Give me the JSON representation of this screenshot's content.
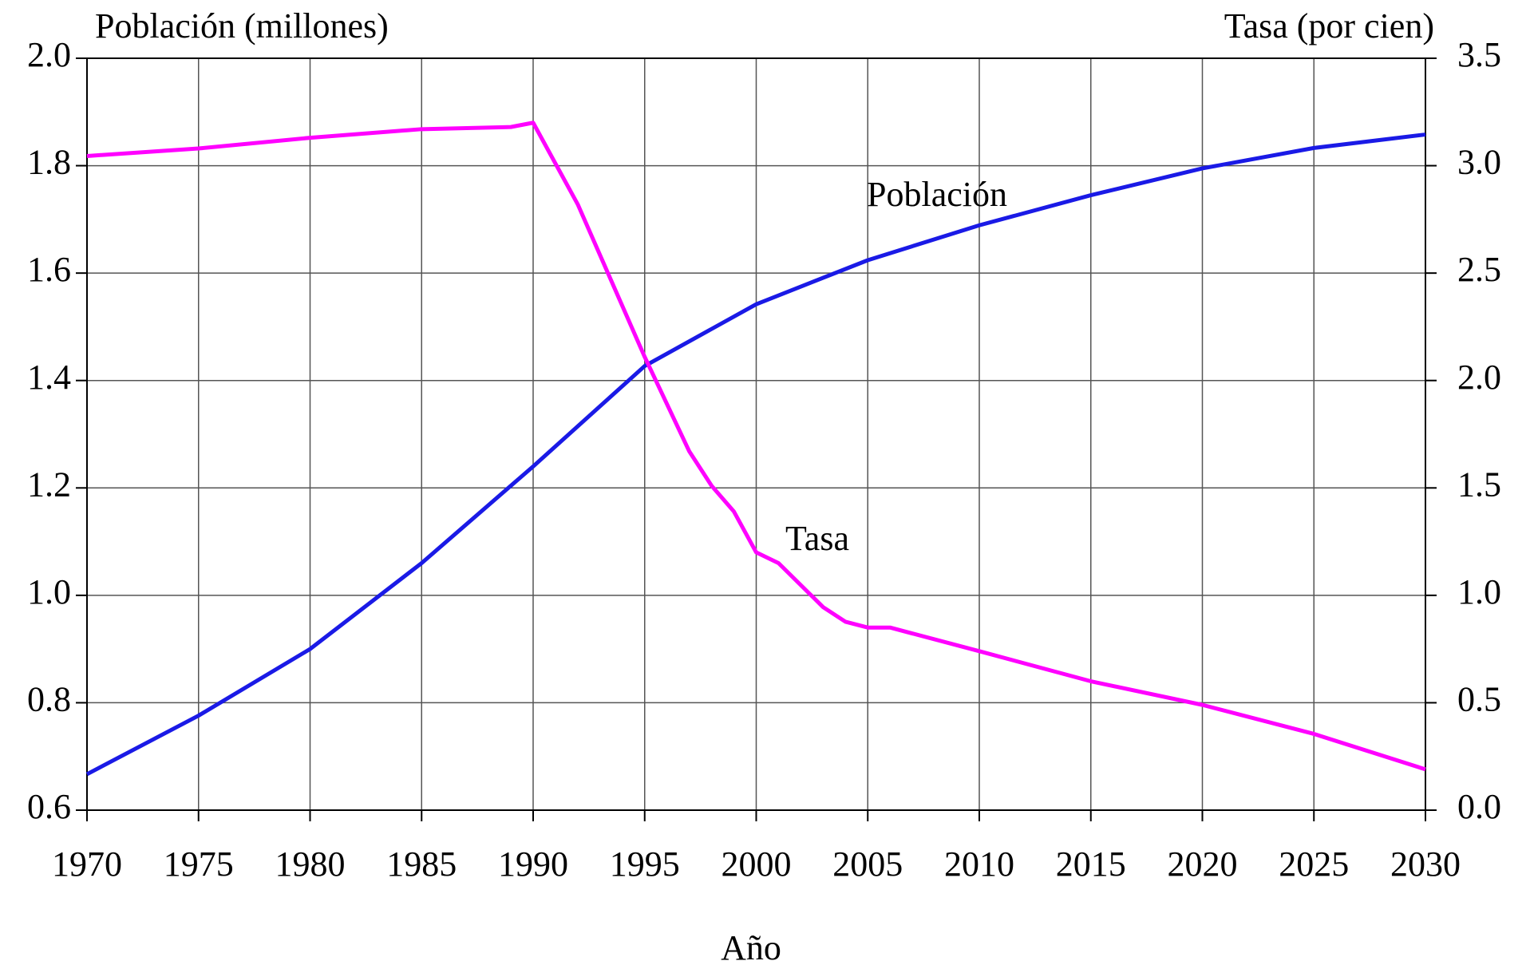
{
  "chart_data": {
    "type": "line",
    "y_label": "Población (millones)",
    "y2_label": "Tasa (por cien)",
    "x_label": "Año",
    "xlim": [
      1970,
      2030
    ],
    "xticks": [
      1970,
      1975,
      1980,
      1985,
      1990,
      1995,
      2000,
      2005,
      2010,
      2015,
      2020,
      2025,
      2030
    ],
    "ylim": [
      0.6,
      2.0
    ],
    "yticks": [
      0.6,
      0.8,
      {
        "value": 1,
        "label": "1.0"
      },
      1.2,
      1.4,
      1.6,
      1.8,
      {
        "value": 2,
        "label": "2.0"
      }
    ],
    "y2lim": [
      0,
      3.5
    ],
    "y2ticks": [
      {
        "value": 0,
        "label": "0.0"
      },
      0.5,
      {
        "value": 1,
        "label": "1.0"
      },
      1.5,
      {
        "value": 2,
        "label": "2.0"
      },
      2.5,
      {
        "value": 3,
        "label": "3.0"
      },
      3.5
    ],
    "grid": true,
    "series": [
      {
        "name": "Población",
        "color": "#1a1ae6",
        "x": [
          1970,
          1975,
          1980,
          1985,
          1990,
          1995,
          2000,
          2005,
          2010,
          2015,
          2020,
          2025,
          2030
        ],
        "values": [
          0.667,
          0.776,
          0.9,
          1.06,
          1.24,
          1.427,
          1.542,
          1.624,
          1.689,
          1.745,
          1.795,
          1.833,
          1.858
        ]
      },
      {
        "name": "Tasa",
        "color": "#ff00ff",
        "axis": "y2",
        "x": [
          1970,
          1975,
          1980,
          1985,
          1989,
          1990,
          1992,
          1995,
          1997,
          1998,
          1999,
          2000,
          2001,
          2003,
          2004,
          2005,
          2006,
          2010,
          2015,
          2020,
          2025,
          2030
        ],
        "values": [
          3.045,
          3.08,
          3.13,
          3.17,
          3.18,
          3.2,
          2.82,
          2.11,
          1.67,
          1.51,
          1.39,
          1.2,
          1.15,
          0.945,
          0.877,
          0.85,
          0.85,
          0.74,
          0.6,
          0.49,
          0.355,
          0.19
        ]
      }
    ]
  }
}
